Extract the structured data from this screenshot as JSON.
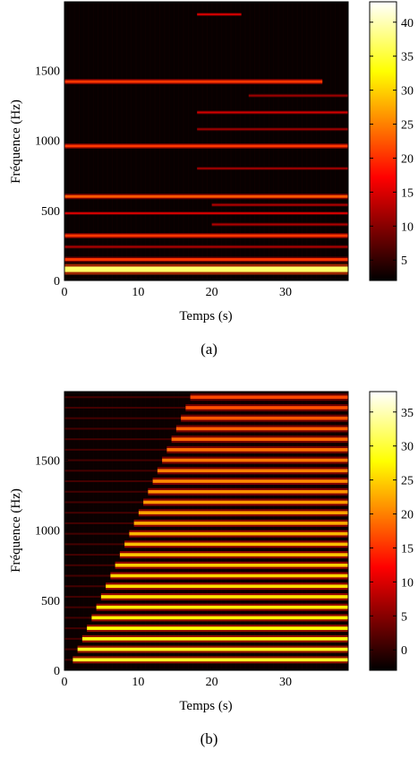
{
  "chart_data": [
    {
      "type": "heatmap",
      "panel": "(a)",
      "xlabel": "Temps (s)",
      "ylabel": "Fréquence (Hz)",
      "xlim": [
        0,
        38.5
      ],
      "ylim": [
        0,
        1990
      ],
      "xticks": [
        0,
        10,
        20,
        30
      ],
      "yticks": [
        0,
        500,
        1000,
        1500
      ],
      "colorbar": {
        "min": 2,
        "max": 43,
        "ticks": [
          5,
          10,
          15,
          20,
          25,
          30,
          35,
          40
        ]
      },
      "colormap": "hot",
      "bands": [
        {
          "freq": 80,
          "start": 0,
          "end": 38.5,
          "intensity": 0.85,
          "width": 6
        },
        {
          "freq": 150,
          "start": 0,
          "end": 38.5,
          "intensity": 0.45,
          "width": 3
        },
        {
          "freq": 240,
          "start": 0,
          "end": 38.5,
          "intensity": 0.25,
          "width": 2
        },
        {
          "freq": 320,
          "start": 0,
          "end": 38.5,
          "intensity": 0.45,
          "width": 3
        },
        {
          "freq": 400,
          "start": 20,
          "end": 38.5,
          "intensity": 0.25,
          "width": 2
        },
        {
          "freq": 480,
          "start": 0,
          "end": 38.5,
          "intensity": 0.3,
          "width": 2
        },
        {
          "freq": 540,
          "start": 20,
          "end": 38.5,
          "intensity": 0.25,
          "width": 2
        },
        {
          "freq": 600,
          "start": 0,
          "end": 38.5,
          "intensity": 0.5,
          "width": 3
        },
        {
          "freq": 800,
          "start": 18,
          "end": 38.5,
          "intensity": 0.22,
          "width": 2
        },
        {
          "freq": 960,
          "start": 0,
          "end": 38.5,
          "intensity": 0.45,
          "width": 3
        },
        {
          "freq": 1080,
          "start": 18,
          "end": 38.5,
          "intensity": 0.22,
          "width": 2
        },
        {
          "freq": 1200,
          "start": 18,
          "end": 38.5,
          "intensity": 0.3,
          "width": 2
        },
        {
          "freq": 1320,
          "start": 25,
          "end": 38.5,
          "intensity": 0.22,
          "width": 2
        },
        {
          "freq": 1420,
          "start": 0,
          "end": 35,
          "intensity": 0.45,
          "width": 3
        },
        {
          "freq": 1900,
          "start": 18,
          "end": 24,
          "intensity": 0.3,
          "width": 2
        }
      ]
    },
    {
      "type": "heatmap",
      "panel": "(b)",
      "xlabel": "Temps (s)",
      "ylabel": "Fréquence (Hz)",
      "xlim": [
        0,
        38.5
      ],
      "ylim": [
        0,
        1990
      ],
      "xticks": [
        0,
        10,
        20,
        30
      ],
      "yticks": [
        0,
        500,
        1000,
        1500
      ],
      "colorbar": {
        "min": -3,
        "max": 38,
        "ticks": [
          0,
          5,
          10,
          15,
          20,
          25,
          30,
          35
        ]
      },
      "colormap": "hot",
      "harmonic_spacing": 75,
      "harmonic_onset": {
        "base": 0.5,
        "slope": 0.0085
      }
    }
  ],
  "captions": {
    "a": "(a)",
    "b": "(b)"
  }
}
